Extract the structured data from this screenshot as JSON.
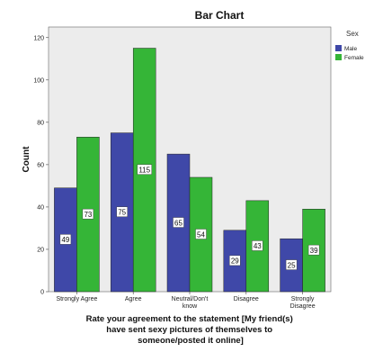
{
  "chart_data": {
    "type": "bar",
    "title": "Bar Chart",
    "ylabel": "Count",
    "xlabel_lines": [
      "Rate your agreement to the statement [My friend(s)",
      "have sent sexy pictures of themselves to",
      "someone/posted it online]"
    ],
    "categories": [
      [
        "Strongly Agree"
      ],
      [
        "Agree"
      ],
      [
        "Neutral/Don't",
        "know"
      ],
      [
        "Disagree"
      ],
      [
        "Strongly",
        "Disagree"
      ]
    ],
    "series": [
      {
        "name": "Male",
        "values": [
          49,
          75,
          65,
          29,
          25
        ],
        "color": "#3f48a8"
      },
      {
        "name": "Female",
        "values": [
          73,
          115,
          54,
          43,
          39
        ],
        "color": "#35b537"
      }
    ],
    "ylim": [
      0,
      125
    ],
    "yticks": [
      0,
      20,
      40,
      60,
      80,
      100,
      120
    ],
    "legend": {
      "title": "Sex",
      "placement": "right"
    },
    "plot_background": "#ececec",
    "grid": false,
    "data_labels": true
  }
}
